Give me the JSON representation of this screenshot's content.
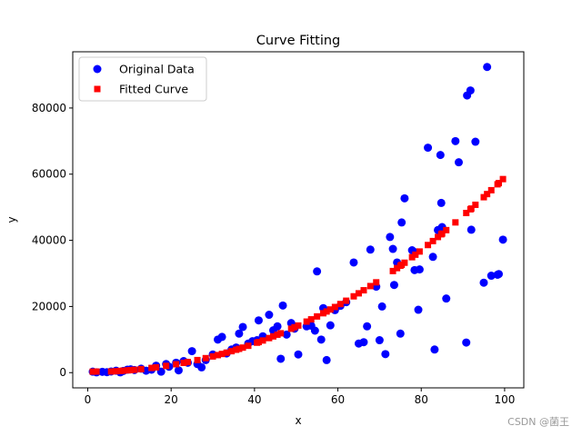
{
  "chart_data": {
    "type": "scatter",
    "title": "Curve Fitting",
    "xlabel": "x",
    "ylabel": "y",
    "xlim": [
      -3.6,
      104.6
    ],
    "ylim": [
      -4600,
      97000
    ],
    "x_ticks": [
      0,
      20,
      40,
      60,
      80,
      100
    ],
    "x_tick_labels": [
      "0",
      "20",
      "40",
      "60",
      "80",
      "100"
    ],
    "y_ticks": [
      0,
      20000,
      40000,
      60000,
      80000
    ],
    "y_tick_labels": [
      "0",
      "20000",
      "40000",
      "60000",
      "80000"
    ],
    "grid": false,
    "legend_position": "top-left",
    "series": [
      {
        "name": "Original Data",
        "marker": "circle",
        "color": "#0000ff",
        "points": [
          [
            1.2,
            300
          ],
          [
            2.1,
            100
          ],
          [
            3.5,
            250
          ],
          [
            4.6,
            150
          ],
          [
            5.6,
            350
          ],
          [
            6.8,
            600
          ],
          [
            7.8,
            100
          ],
          [
            8.5,
            500
          ],
          [
            9.5,
            900
          ],
          [
            10.3,
            1000
          ],
          [
            11.2,
            800
          ],
          [
            12.8,
            1200
          ],
          [
            14.0,
            600
          ],
          [
            15.3,
            900
          ],
          [
            16.4,
            2100
          ],
          [
            17.6,
            300
          ],
          [
            18.8,
            2600
          ],
          [
            19.5,
            1800
          ],
          [
            21.2,
            3000
          ],
          [
            21.8,
            700
          ],
          [
            23.0,
            3500
          ],
          [
            24.0,
            3000
          ],
          [
            25.0,
            6500
          ],
          [
            26.3,
            2600
          ],
          [
            27.3,
            1600
          ],
          [
            28.3,
            3800
          ],
          [
            30.0,
            5500
          ],
          [
            31.2,
            10000
          ],
          [
            32.2,
            10800
          ],
          [
            33.3,
            5800
          ],
          [
            34.5,
            7000
          ],
          [
            35.6,
            7600
          ],
          [
            36.3,
            11800
          ],
          [
            37.2,
            13800
          ],
          [
            38.5,
            8800
          ],
          [
            39.5,
            9500
          ],
          [
            40.6,
            9800
          ],
          [
            41.0,
            15800
          ],
          [
            42.0,
            11000
          ],
          [
            43.5,
            17500
          ],
          [
            44.5,
            12800
          ],
          [
            45.5,
            14000
          ],
          [
            46.3,
            4200
          ],
          [
            46.8,
            20300
          ],
          [
            47.7,
            11500
          ],
          [
            48.8,
            15000
          ],
          [
            49.6,
            13300
          ],
          [
            50.5,
            5500
          ],
          [
            52.5,
            14000
          ],
          [
            53.6,
            14200
          ],
          [
            54.5,
            12700
          ],
          [
            55.0,
            30600
          ],
          [
            56.0,
            10000
          ],
          [
            56.5,
            19500
          ],
          [
            57.3,
            3800
          ],
          [
            58.2,
            14300
          ],
          [
            59.3,
            18900
          ],
          [
            60.6,
            20200
          ],
          [
            62.0,
            21300
          ],
          [
            63.8,
            33300
          ],
          [
            65.0,
            8800
          ],
          [
            66.2,
            9200
          ],
          [
            67.0,
            14000
          ],
          [
            67.8,
            37200
          ],
          [
            69.2,
            26000
          ],
          [
            70.0,
            9800
          ],
          [
            70.6,
            20000
          ],
          [
            71.4,
            5600
          ],
          [
            72.5,
            41000
          ],
          [
            73.2,
            37400
          ],
          [
            73.5,
            26500
          ],
          [
            74.2,
            33300
          ],
          [
            75.0,
            11800
          ],
          [
            75.3,
            45400
          ],
          [
            76.0,
            52700
          ],
          [
            77.8,
            37000
          ],
          [
            78.4,
            31000
          ],
          [
            78.6,
            36400
          ],
          [
            79.3,
            19000
          ],
          [
            79.6,
            31200
          ],
          [
            81.6,
            68000
          ],
          [
            82.8,
            35000
          ],
          [
            83.2,
            7000
          ],
          [
            84.0,
            43100
          ],
          [
            84.6,
            65800
          ],
          [
            84.8,
            51300
          ],
          [
            85.0,
            44000
          ],
          [
            86.0,
            22400
          ],
          [
            88.2,
            70000
          ],
          [
            89.0,
            63600
          ],
          [
            90.8,
            9100
          ],
          [
            91.0,
            83800
          ],
          [
            91.8,
            85300
          ],
          [
            92.0,
            43200
          ],
          [
            93.0,
            69800
          ],
          [
            95.0,
            27200
          ],
          [
            95.8,
            92400
          ],
          [
            96.8,
            29300
          ],
          [
            98.3,
            29600
          ],
          [
            98.6,
            29800
          ],
          [
            99.6,
            40200
          ]
        ]
      },
      {
        "name": "Fitted Curve",
        "marker": "square",
        "color": "#ff0000",
        "points": [
          [
            1.2,
            300
          ],
          [
            2.1,
            330
          ],
          [
            5.6,
            350
          ],
          [
            6.8,
            430
          ],
          [
            7.8,
            520
          ],
          [
            8.5,
            590
          ],
          [
            9.5,
            690
          ],
          [
            10.3,
            770
          ],
          [
            11.2,
            860
          ],
          [
            12.8,
            1060
          ],
          [
            15.3,
            1420
          ],
          [
            16.4,
            1600
          ],
          [
            18.8,
            2040
          ],
          [
            21.2,
            2540
          ],
          [
            23.0,
            2960
          ],
          [
            24.0,
            3200
          ],
          [
            26.3,
            3800
          ],
          [
            28.3,
            4380
          ],
          [
            30.0,
            4900
          ],
          [
            31.2,
            5300
          ],
          [
            32.2,
            5650
          ],
          [
            33.3,
            6040
          ],
          [
            34.5,
            6490
          ],
          [
            35.6,
            6920
          ],
          [
            36.3,
            7200
          ],
          [
            37.2,
            7570
          ],
          [
            38.5,
            8120
          ],
          [
            40.6,
            9060
          ],
          [
            41.0,
            9250
          ],
          [
            42.0,
            9720
          ],
          [
            43.5,
            10450
          ],
          [
            44.5,
            10960
          ],
          [
            45.5,
            11470
          ],
          [
            46.3,
            11900
          ],
          [
            48.8,
            13270
          ],
          [
            49.6,
            13730
          ],
          [
            50.5,
            14240
          ],
          [
            52.5,
            15430
          ],
          [
            53.6,
            16110
          ],
          [
            55.0,
            16990
          ],
          [
            56.5,
            17960
          ],
          [
            57.3,
            18490
          ],
          [
            58.2,
            19090
          ],
          [
            59.3,
            19840
          ],
          [
            60.6,
            20740
          ],
          [
            62.0,
            21740
          ],
          [
            63.8,
            23070
          ],
          [
            65.0,
            23980
          ],
          [
            66.2,
            24900
          ],
          [
            67.8,
            26170
          ],
          [
            69.2,
            27300
          ],
          [
            73.2,
            30720
          ],
          [
            74.2,
            31600
          ],
          [
            75.0,
            32320
          ],
          [
            75.3,
            32590
          ],
          [
            76.0,
            33230
          ],
          [
            77.8,
            34900
          ],
          [
            78.6,
            35660
          ],
          [
            79.6,
            36620
          ],
          [
            81.6,
            38580
          ],
          [
            82.8,
            39780
          ],
          [
            84.0,
            41000
          ],
          [
            84.8,
            41830
          ],
          [
            85.0,
            42040
          ],
          [
            86.0,
            43080
          ],
          [
            88.2,
            45420
          ],
          [
            90.8,
            48260
          ],
          [
            91.8,
            49380
          ],
          [
            92.0,
            49600
          ],
          [
            93.0,
            50740
          ],
          [
            95.0,
            53040
          ],
          [
            95.8,
            53980
          ],
          [
            96.8,
            55150
          ],
          [
            98.3,
            56940
          ],
          [
            98.6,
            57300
          ],
          [
            99.6,
            58510
          ]
        ]
      }
    ]
  },
  "watermark": "CSDN @菌王"
}
